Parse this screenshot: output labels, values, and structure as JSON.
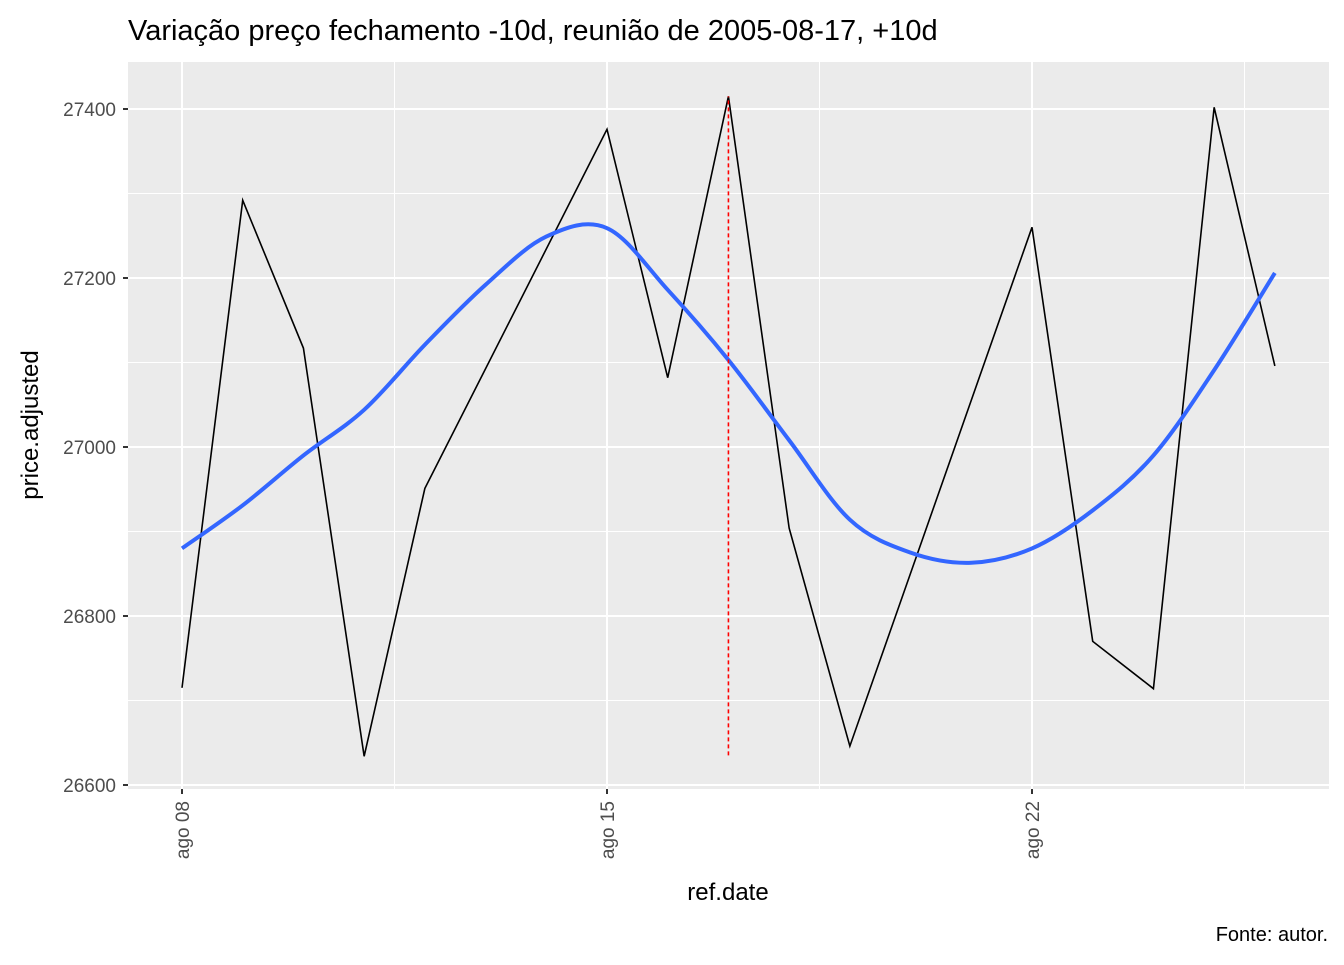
{
  "chart_data": {
    "type": "line",
    "title": "Variação preço fechamento -10d, reunião de 2005-08-17, +10d",
    "xlabel": "ref.date",
    "ylabel": "price.adjusted",
    "caption": "Fonte: autor.",
    "x_ticks": [
      {
        "date": "2005-08-08",
        "label": "ago 08"
      },
      {
        "date": "2005-08-15",
        "label": "ago 15"
      },
      {
        "date": "2005-08-22",
        "label": "ago 22"
      }
    ],
    "y_ticks": [
      26600,
      26800,
      27000,
      27200,
      27400
    ],
    "ylim": [
      26580,
      27455
    ],
    "xlim": [
      "2005-08-07",
      "2005-08-27"
    ],
    "grid": true,
    "series": [
      {
        "style": "line",
        "color": "#000000",
        "x": [
          "2005-08-08",
          "2005-08-09",
          "2005-08-10",
          "2005-08-11",
          "2005-08-12",
          "2005-08-15",
          "2005-08-16",
          "2005-08-17",
          "2005-08-18",
          "2005-08-19",
          "2005-08-22",
          "2005-08-23",
          "2005-08-24",
          "2005-08-25",
          "2005-08-26"
        ],
        "y": [
          26715,
          27292,
          27117,
          26634,
          26951,
          27376,
          27082,
          27415,
          26904,
          26646,
          27260,
          26770,
          26714,
          27402,
          27096
        ]
      },
      {
        "style": "smooth",
        "color": "#3366FF",
        "x": [
          "2005-08-08",
          "2005-08-09",
          "2005-08-10",
          "2005-08-11",
          "2005-08-12",
          "2005-08-13",
          "2005-08-14",
          "2005-08-15",
          "2005-08-16",
          "2005-08-17",
          "2005-08-18",
          "2005-08-19",
          "2005-08-20",
          "2005-08-21",
          "2005-08-22",
          "2005-08-23",
          "2005-08-24",
          "2005-08-25",
          "2005-08-26"
        ],
        "y": [
          26880,
          26931,
          26990,
          27044,
          27121,
          27192,
          27249,
          27259,
          27186,
          27103,
          27008,
          26914,
          26875,
          26863,
          26880,
          26925,
          26990,
          27091,
          27206
        ]
      }
    ],
    "vline": {
      "x": "2005-08-17",
      "y_from": 26635,
      "y_to": 27415,
      "color": "#FF0000",
      "style": "dashed"
    }
  }
}
